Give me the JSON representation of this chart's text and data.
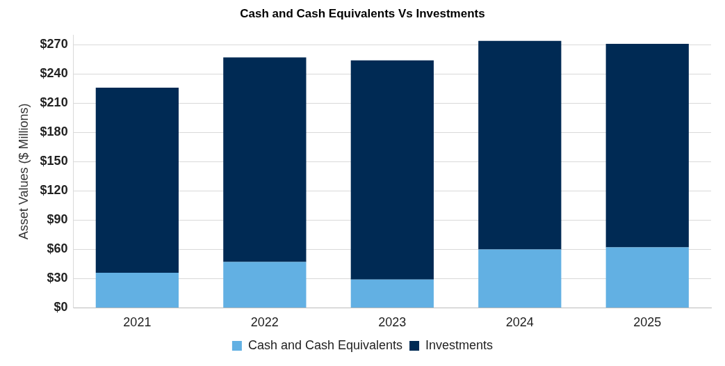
{
  "chart_data": {
    "type": "bar",
    "title": "Cash and Cash Equivalents Vs Investments",
    "ylabel": "Asset Values ($ Millions)",
    "categories": [
      "2021",
      "2022",
      "2023",
      "2024",
      "2025"
    ],
    "stacked": true,
    "series": [
      {
        "name": "Cash and Cash Equivalents",
        "color": "#62b0e3",
        "values": [
          36,
          47,
          29,
          60,
          62
        ]
      },
      {
        "name": "Investments",
        "color": "#002a54",
        "values": [
          190,
          210,
          225,
          214,
          209
        ]
      }
    ],
    "ylim": [
      0,
      280
    ],
    "yticks": [
      {
        "value": 0,
        "label": "$0"
      },
      {
        "value": 30,
        "label": "$30"
      },
      {
        "value": 60,
        "label": "$60"
      },
      {
        "value": 90,
        "label": "$90"
      },
      {
        "value": 120,
        "label": "$120"
      },
      {
        "value": 150,
        "label": "$150"
      },
      {
        "value": 180,
        "label": "$180"
      },
      {
        "value": 210,
        "label": "$210"
      },
      {
        "value": 240,
        "label": "$240"
      },
      {
        "value": 270,
        "label": "$270"
      }
    ],
    "grid": "y",
    "legend": "bottom"
  }
}
